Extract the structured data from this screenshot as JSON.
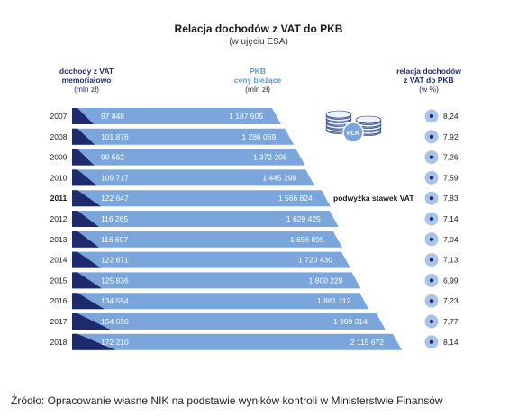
{
  "chart_data": {
    "type": "bar",
    "title": "Relacja dochodów z VAT do PKB",
    "subtitle": "(w ujęciu ESA)",
    "headers": {
      "vat": [
        "dochody z VAT",
        "memoriałowo",
        "(mln zł)"
      ],
      "gdp": [
        "PKB",
        "ceny bieżące",
        "(mln zł)"
      ],
      "ratio": [
        "relacja dochodów",
        "z VAT do PKB",
        "(w %)"
      ]
    },
    "categories": [
      "2007",
      "2008",
      "2009",
      "2010",
      "2011",
      "2012",
      "2013",
      "2014",
      "2015",
      "2016",
      "2017",
      "2018"
    ],
    "highlight_year": "2011",
    "vat_values": [
      97848,
      101876,
      99562,
      109717,
      122647,
      116265,
      116607,
      122671,
      125836,
      134554,
      154656,
      172210
    ],
    "vat_labels": [
      "97 848",
      "101 876",
      "99 562",
      "109 717",
      "122 647",
      "116 265",
      "116 607",
      "122 671",
      "125 836",
      "134 554",
      "154 656",
      "172 210"
    ],
    "gdp_values": [
      1187605,
      1286069,
      1372208,
      1445298,
      1566824,
      1629425,
      1656895,
      1720430,
      1800228,
      1861112,
      1989314,
      2115672
    ],
    "gdp_labels": [
      "1 187 605",
      "1 286 069",
      "1 372 208",
      "1 445 298",
      "1 566 824",
      "1 629 425",
      "1 656 895",
      "1 720 430",
      "1 800 228",
      "1 861 112",
      "1 989 314",
      "2 115 672"
    ],
    "ratio_labels": [
      "8,24",
      "7,92",
      "7,26",
      "7,59",
      "7,83",
      "7,14",
      "7,04",
      "7,13",
      "6,99",
      "7,23",
      "7,77",
      "8,14"
    ],
    "annotation": {
      "year": "2011",
      "text": "podwyżka stawek VAT"
    },
    "icon": {
      "name": "coin-stack-icon",
      "label": "PLN"
    },
    "colors": {
      "vat_bar": "#1e2a6e",
      "gdp_bar": "#7aa6dc",
      "gdp_header": "#5b9bd5",
      "bullet_ring": "#a9c4ea",
      "bullet_dot": "#1e2a6e"
    }
  },
  "source": "Źródło: Opracowanie własne NIK na podstawie wyników kontroli w Ministerstwie Finansów"
}
